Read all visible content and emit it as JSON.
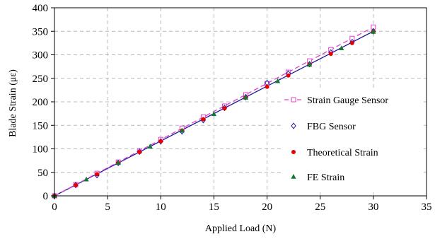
{
  "chart_data": {
    "type": "scatter",
    "xlabel": "Applied Load (N)",
    "ylabel": "Blade Strain (με)",
    "xlim": [
      0,
      35
    ],
    "ylim": [
      0,
      400
    ],
    "xticks": [
      0,
      5,
      10,
      15,
      20,
      25,
      30,
      35
    ],
    "yticks": [
      0,
      50,
      100,
      150,
      200,
      250,
      300,
      350,
      400
    ],
    "grid": true,
    "grid_style": "dashed",
    "legend_position": "right",
    "series": [
      {
        "name": "Strain Gauge Sensor",
        "marker": "square-open",
        "line": "dashed",
        "color": "#e040c8",
        "x": [
          0,
          2,
          4,
          6,
          8,
          10,
          12,
          14,
          16,
          18,
          20,
          22,
          24,
          26,
          28,
          30
        ],
        "y": [
          0,
          24,
          48,
          72,
          96,
          120,
          144,
          168,
          191,
          215,
          239,
          263,
          287,
          311,
          335,
          359
        ]
      },
      {
        "name": "FBG Sensor",
        "marker": "diamond-open",
        "line": "solid",
        "color": "#1a1aa0",
        "x": [
          0,
          2,
          4,
          6,
          8,
          10,
          12,
          14,
          16,
          18,
          20,
          22,
          24,
          26,
          28,
          30
        ],
        "y": [
          0,
          23,
          44,
          70,
          94,
          116,
          137,
          161,
          187,
          210,
          240,
          260,
          280,
          305,
          327,
          350
        ]
      },
      {
        "name": "Theoretical Strain",
        "marker": "circle-filled",
        "line": "solid",
        "color": "#e60000",
        "x": [
          0,
          2,
          4,
          6,
          8,
          10,
          12,
          14,
          16,
          18,
          20,
          22,
          24,
          26,
          28,
          30
        ],
        "y": [
          0,
          23,
          46,
          70,
          93,
          116,
          139,
          163,
          186,
          209,
          232,
          256,
          279,
          302,
          325,
          349
        ]
      },
      {
        "name": "FE Strain",
        "marker": "triangle-filled",
        "line": "solid",
        "color": "#117a30",
        "x": [
          0,
          3,
          6,
          9,
          12,
          15,
          18,
          21,
          24,
          27,
          30
        ],
        "y": [
          0,
          35,
          70,
          105,
          139,
          174,
          209,
          244,
          279,
          314,
          349
        ]
      }
    ],
    "fit_lines": [
      {
        "series": "FBG Sensor",
        "style": "solid",
        "color": "#1a1aa0",
        "x": [
          0,
          30
        ],
        "y": [
          0,
          350
        ]
      },
      {
        "series": "Strain Gauge Sensor",
        "style": "dashed",
        "color": "#e040c8",
        "x": [
          0,
          30
        ],
        "y": [
          0,
          359
        ]
      }
    ]
  }
}
